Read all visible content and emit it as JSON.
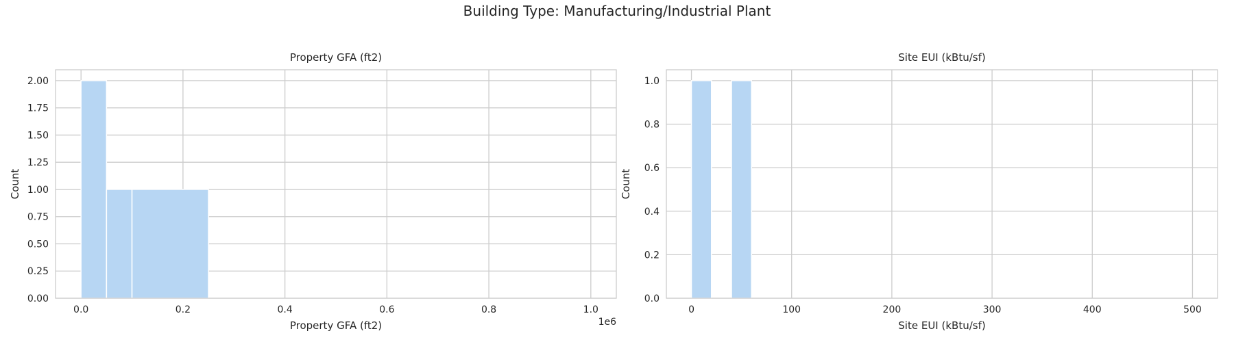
{
  "suptitle": "Building Type: Manufacturing/Industrial Plant",
  "colors": {
    "bar": "#b7d6f3",
    "grid": "#cccccc",
    "spine": "#cccccc",
    "text": "#262626"
  },
  "chart_data": [
    {
      "type": "bar",
      "title": "Property GFA (ft2)",
      "xlabel": "Property GFA (ft2)",
      "ylabel": "Count",
      "x_offset_label": "1e6",
      "xlim": [
        -0.05,
        1.05
      ],
      "ylim": [
        0,
        2.1
      ],
      "xticks": [
        0.0,
        0.2,
        0.4,
        0.6,
        0.8,
        1.0
      ],
      "xtick_labels": [
        "0.0",
        "0.2",
        "0.4",
        "0.6",
        "0.8",
        "1.0"
      ],
      "yticks": [
        0,
        0.25,
        0.5,
        0.75,
        1.0,
        1.25,
        1.5,
        1.75,
        2.0
      ],
      "ytick_labels": [
        "0.00",
        "0.25",
        "0.50",
        "0.75",
        "1.00",
        "1.25",
        "1.50",
        "1.75",
        "2.00"
      ],
      "grid": true,
      "bins": [
        {
          "x0": 0.0,
          "x1": 0.05,
          "count": 2
        },
        {
          "x0": 0.05,
          "x1": 0.1,
          "count": 1
        },
        {
          "x0": 0.1,
          "x1": 0.25,
          "count": 1
        }
      ]
    },
    {
      "type": "bar",
      "title": "Site EUI (kBtu/sf)",
      "xlabel": "Site EUI (kBtu/sf)",
      "ylabel": "Count",
      "xlim": [
        -25,
        525
      ],
      "ylim": [
        0,
        1.05
      ],
      "xticks": [
        0,
        100,
        200,
        300,
        400,
        500
      ],
      "xtick_labels": [
        "0",
        "100",
        "200",
        "300",
        "400",
        "500"
      ],
      "yticks": [
        0.0,
        0.2,
        0.4,
        0.6,
        0.8,
        1.0
      ],
      "ytick_labels": [
        "0.0",
        "0.2",
        "0.4",
        "0.6",
        "0.8",
        "1.0"
      ],
      "grid": true,
      "bins": [
        {
          "x0": 0,
          "x1": 20,
          "count": 1
        },
        {
          "x0": 40,
          "x1": 60,
          "count": 1
        }
      ]
    }
  ]
}
